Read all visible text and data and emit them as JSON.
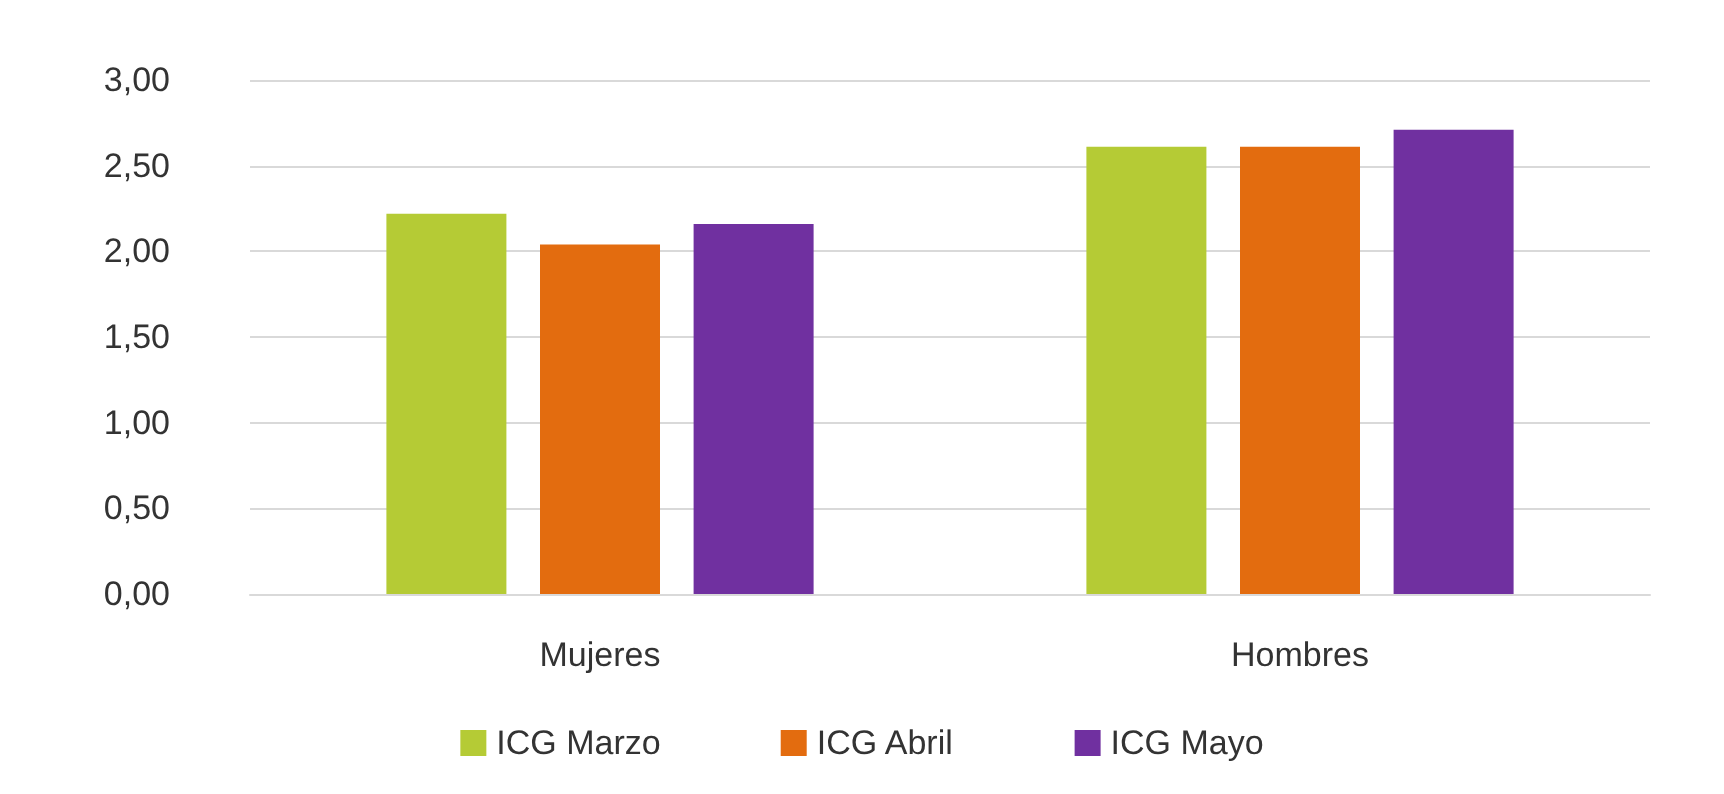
{
  "chart_data": {
    "type": "bar",
    "categories": [
      "Mujeres",
      "Hombres"
    ],
    "series": [
      {
        "name": "ICG Marzo",
        "color": "#b5cb35",
        "values": [
          2.22,
          2.61
        ]
      },
      {
        "name": "ICG Abril",
        "color": "#e36c0f",
        "values": [
          2.04,
          2.61
        ]
      },
      {
        "name": "ICG Mayo",
        "color": "#7030a0",
        "values": [
          2.16,
          2.71
        ]
      }
    ],
    "ylim": [
      0,
      3
    ],
    "yticks": [
      {
        "value": 0,
        "label": "0,00"
      },
      {
        "value": 0.5,
        "label": "0,50"
      },
      {
        "value": 1,
        "label": "1,00"
      },
      {
        "value": 1.5,
        "label": "1,50"
      },
      {
        "value": 2,
        "label": "2,00"
      },
      {
        "value": 2.5,
        "label": "2,50"
      },
      {
        "value": 3,
        "label": "3,00"
      }
    ],
    "grid": "y",
    "legend": "bottom"
  }
}
